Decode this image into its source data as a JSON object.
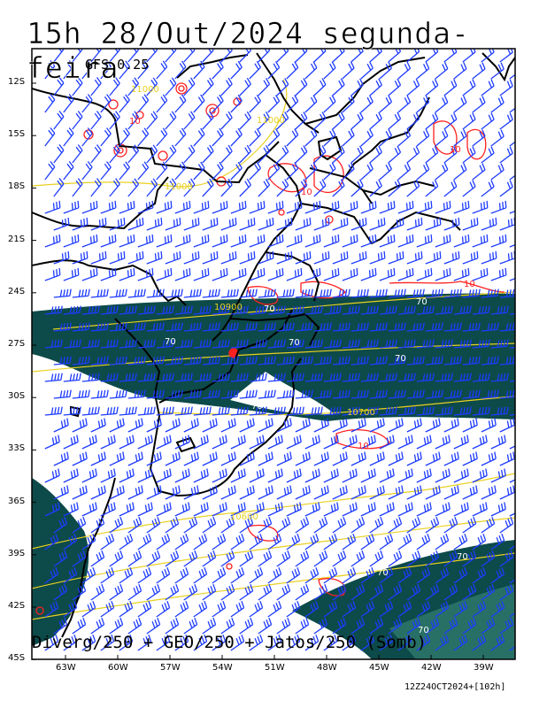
{
  "title": "15h 28/Out/2024 segunda-feira",
  "model": "GFS 0.25",
  "legend": "Diverg/250 + GEO/250 + Jatos/250 (Somb)",
  "run_stamp": "12Z24OCT2024+[102h]",
  "lat_labels": [
    "12S",
    "15S",
    "18S",
    "21S",
    "24S",
    "27S",
    "30S",
    "33S",
    "36S",
    "39S",
    "42S",
    "45S"
  ],
  "lon_labels": [
    "63W",
    "60W",
    "57W",
    "54W",
    "51W",
    "48W",
    "45W",
    "42W",
    "39W"
  ],
  "geopotential_labels": [
    "11000",
    "11000",
    "11000",
    "10900",
    "10700",
    "10600"
  ],
  "jet_labels": [
    "70",
    "70",
    "70",
    "70",
    "70",
    "70",
    "70",
    "70",
    "70"
  ],
  "divergence_labels": [
    "10",
    "10",
    "10",
    "10",
    "10"
  ],
  "colors": {
    "jet_fill": "#0d4a4a",
    "jet_core": "#3a8a7a",
    "barbs": "#1e3cff",
    "divergence": "#ff2020",
    "geopotential": "#e8d020",
    "borders": "#000000"
  }
}
